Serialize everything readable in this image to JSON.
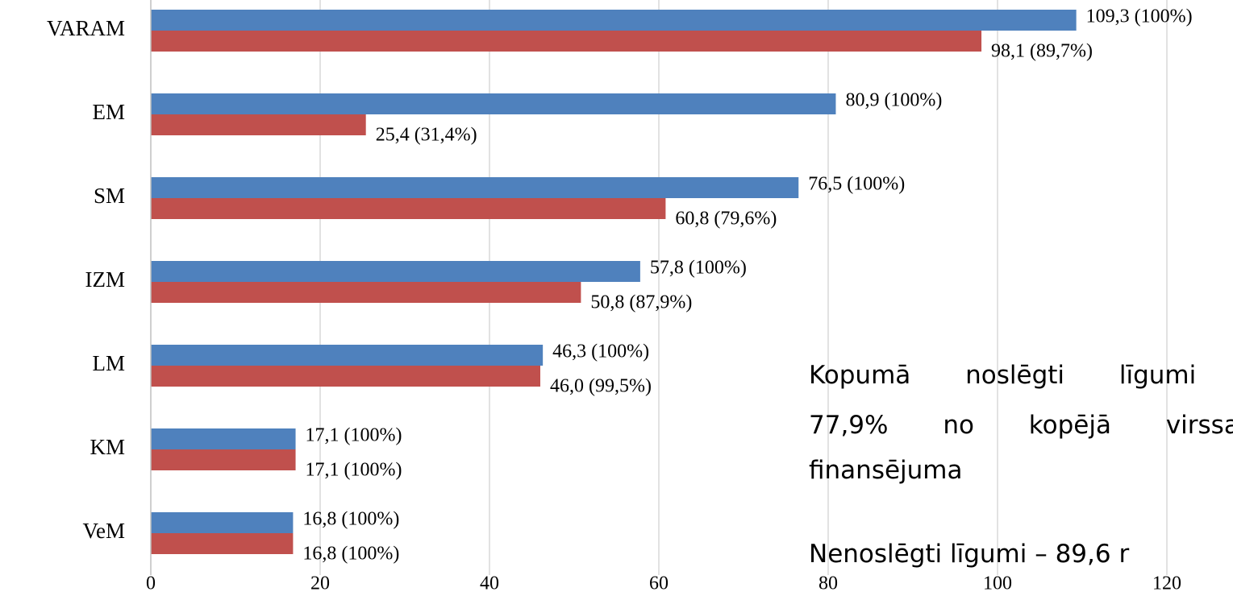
{
  "chart_data": {
    "type": "hbar",
    "categories": [
      "VARAM",
      "EM",
      "SM",
      "IZM",
      "LM",
      "KM",
      "VeM"
    ],
    "series": [
      {
        "color": "#4f81bd",
        "values": [
          109.3,
          80.9,
          76.5,
          57.8,
          46.3,
          17.1,
          16.8
        ],
        "value_labels": [
          "109,3 (100%)",
          "80,9 (100%)",
          "76,5 (100%)",
          "57,8 (100%)",
          "46,3 (100%)",
          "17,1 (100%)",
          "16,8 (100%)"
        ]
      },
      {
        "color": "#c0504d",
        "values": [
          98.1,
          25.4,
          60.8,
          50.8,
          46.0,
          17.1,
          16.8
        ],
        "value_labels": [
          "98,1 (89,7%)",
          "25,4 (31,4%)",
          "60,8 (79,6%)",
          "50,8 (87,9%)",
          "46,0 (99,5%)",
          "17,1 (100%)",
          "16,8 (100%)"
        ]
      }
    ],
    "xlim": [
      0,
      120
    ],
    "xticks": [
      0,
      20,
      40,
      60,
      80,
      100,
      120
    ],
    "grid": true,
    "annotations": [
      "Kopumā noslēgti līgumi",
      "77,9% no kopējā virssa",
      "finansējuma",
      "Nenoslēgti līgumi – 89,6 r"
    ]
  }
}
